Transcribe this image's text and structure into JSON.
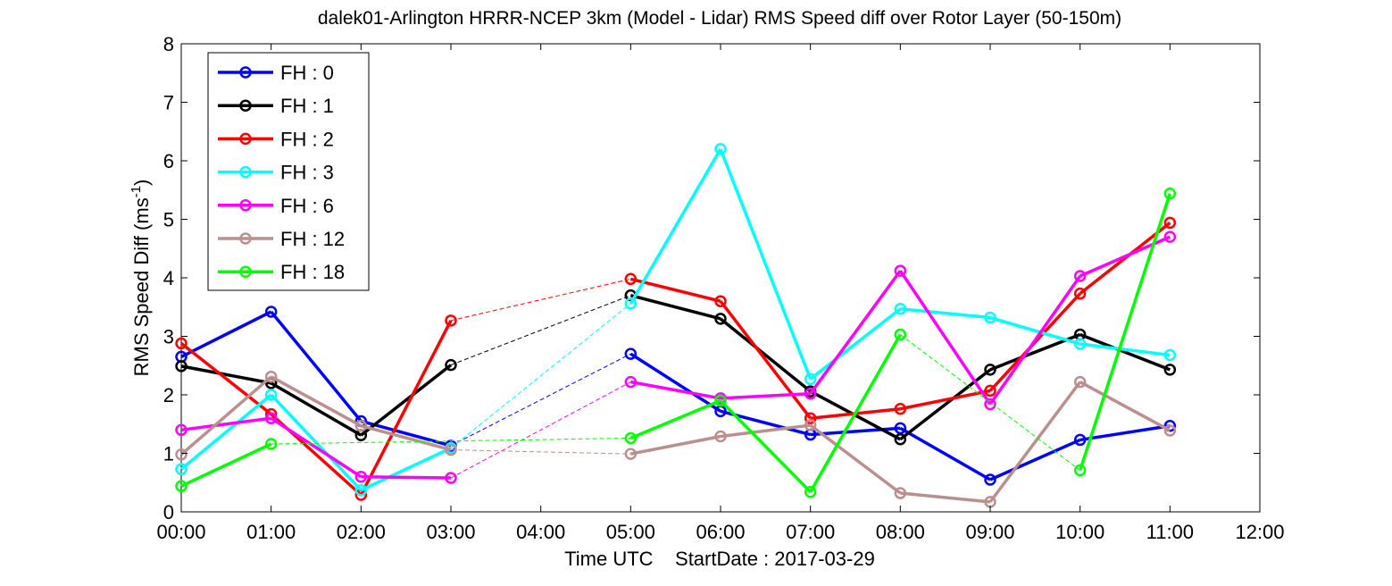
{
  "chart_data": {
    "type": "line",
    "title": "dalek01-Arlington HRRR-NCEP 3km (Model - Lidar) RMS Speed diff over Rotor Layer (50-150m)",
    "xlabel": "Time UTC    StartDate : 2017-03-29",
    "ylabel": "RMS Speed Diff (ms",
    "ylabel_sup": "-1",
    "ylabel_end": ")",
    "xlim": [
      0,
      12
    ],
    "ylim": [
      0,
      8
    ],
    "x_tick_values": [
      0,
      1,
      2,
      3,
      4,
      5,
      6,
      7,
      8,
      9,
      10,
      11,
      12
    ],
    "x_tick_labels": [
      "00:00",
      "01:00",
      "02:00",
      "03:00",
      "04:00",
      "05:00",
      "06:00",
      "07:00",
      "08:00",
      "09:00",
      "10:00",
      "11:00",
      "12:00"
    ],
    "y_ticks": [
      0,
      1,
      2,
      3,
      4,
      5,
      6,
      7,
      8
    ],
    "grid": false,
    "legend_position": "top-left",
    "gap_style": "thin dashed line across missing hours",
    "series": [
      {
        "name": "FH : 0",
        "color": "#0000ff",
        "x": [
          0,
          1,
          2,
          3,
          5,
          6,
          7,
          8,
          9,
          10,
          11
        ],
        "values": [
          2.65,
          3.42,
          1.55,
          1.13,
          2.7,
          1.72,
          1.32,
          1.43,
          0.55,
          1.23,
          1.47
        ]
      },
      {
        "name": "FH : 1",
        "color": "#000000",
        "x": [
          0,
          1,
          2,
          3,
          5,
          6,
          7,
          8,
          9,
          10,
          11
        ],
        "values": [
          2.49,
          2.2,
          1.31,
          2.51,
          3.7,
          3.3,
          2.06,
          1.24,
          2.43,
          3.03,
          2.43
        ]
      },
      {
        "name": "FH : 2",
        "color": "#ff0000",
        "x": [
          0,
          1,
          2,
          3,
          5,
          6,
          7,
          8,
          9,
          10,
          11
        ],
        "values": [
          2.88,
          1.67,
          0.29,
          3.27,
          3.98,
          3.6,
          1.6,
          1.76,
          2.07,
          3.73,
          4.94
        ]
      },
      {
        "name": "FH : 3",
        "color": "#00ffff",
        "x": [
          0,
          1,
          2,
          3,
          5,
          6,
          7,
          8,
          9,
          10,
          11
        ],
        "values": [
          0.73,
          2.0,
          0.37,
          1.09,
          3.56,
          6.2,
          2.27,
          3.47,
          3.32,
          2.87,
          2.68
        ]
      },
      {
        "name": "FH : 6",
        "color": "#ff00ff",
        "x": [
          0,
          1,
          2,
          3,
          5,
          6,
          7,
          8,
          9,
          10,
          11
        ],
        "values": [
          1.4,
          1.6,
          0.6,
          0.58,
          2.22,
          1.94,
          2.02,
          4.12,
          1.84,
          4.03,
          4.7
        ]
      },
      {
        "name": "FH : 12",
        "color": "#bc8f8f",
        "x": [
          0,
          1,
          2,
          3,
          5,
          6,
          7,
          8,
          9,
          10,
          11
        ],
        "values": [
          0.98,
          2.31,
          1.47,
          1.06,
          0.99,
          1.29,
          1.48,
          0.32,
          0.17,
          2.22,
          1.39
        ]
      },
      {
        "name": "FH : 18",
        "color": "#00ff00",
        "x": [
          0,
          1,
          3,
          5,
          6,
          7,
          8,
          10,
          11
        ],
        "values": [
          0.44,
          1.16,
          null,
          1.26,
          1.9,
          0.34,
          3.03,
          0.71,
          5.44
        ]
      }
    ]
  }
}
